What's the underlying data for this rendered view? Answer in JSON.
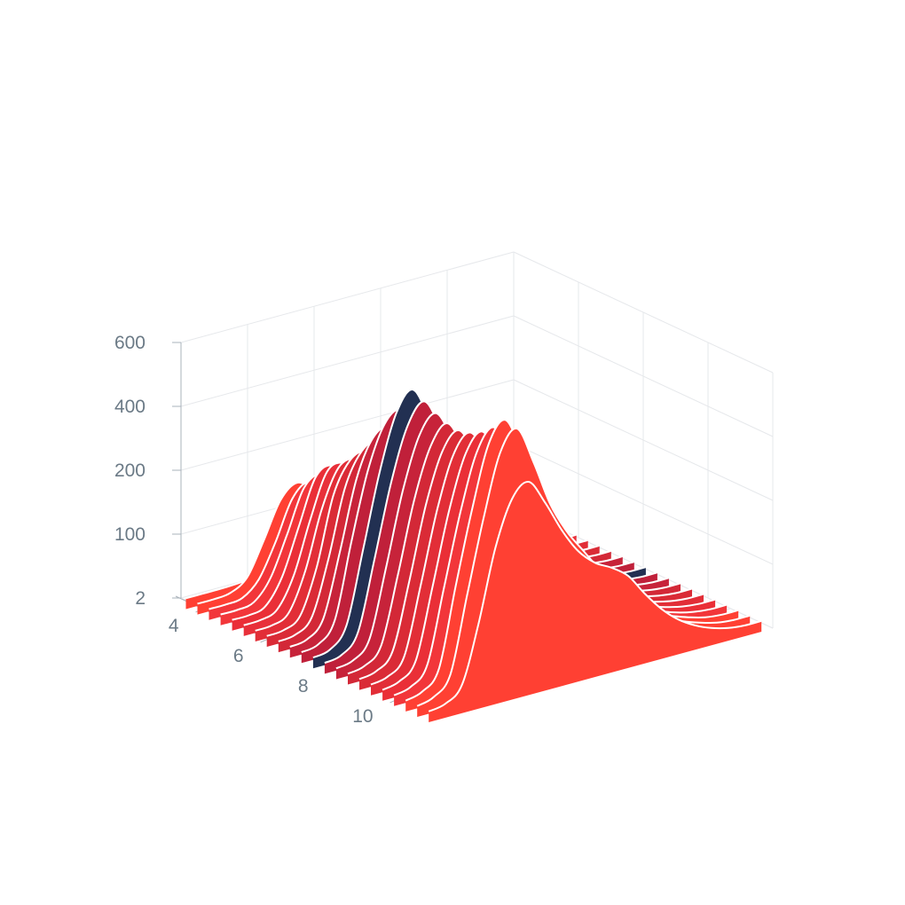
{
  "chart_data": {
    "type": "area",
    "subtype": "3d-ridgeline",
    "title": "",
    "xlabel": "",
    "ylabel": "",
    "zlabel": "",
    "y_axis": {
      "scale": "non-linear",
      "ticks": [
        2,
        100,
        200,
        400,
        600
      ],
      "tick_labels": [
        "2",
        "100",
        "200",
        "400",
        "600"
      ],
      "range": [
        2,
        600
      ]
    },
    "depth_axis": {
      "ticks": [
        4,
        6,
        8,
        10
      ],
      "tick_labels": [
        "4",
        "6",
        "8",
        "10"
      ],
      "range": [
        3.3,
        11.3
      ]
    },
    "x_range": [
      0,
      1
    ],
    "grid": true,
    "legend": "none",
    "highlight_series_index": 11,
    "highlight_color": "#223052",
    "series_colors": [
      "#ff4033",
      "#ff4033",
      "#f2363a",
      "#f2363a",
      "#ea2f37",
      "#e8303a",
      "#e22e37",
      "#da2b36",
      "#d32837",
      "#c7233a",
      "#c0203a",
      "#223052",
      "#c0203a",
      "#c7233a",
      "#d32837",
      "#da2b36",
      "#e22e37",
      "#ea2f37",
      "#f2363a",
      "#ff4033",
      "#ff4033",
      "#ff4033"
    ],
    "x": [
      0.0,
      0.05,
      0.1,
      0.15,
      0.2,
      0.25,
      0.3,
      0.35,
      0.4,
      0.45,
      0.5,
      0.55,
      0.6,
      0.65,
      0.7,
      0.75,
      0.8,
      0.85,
      0.9,
      0.95,
      1.0
    ],
    "series": [
      {
        "values": [
          5,
          5,
          5,
          6,
          8,
          10,
          12,
          13,
          13,
          13,
          13,
          12,
          10,
          8,
          7,
          6,
          5,
          5,
          5,
          5,
          5
        ]
      },
      {
        "values": [
          5,
          5,
          8,
          25,
          75,
          130,
          150,
          130,
          100,
          80,
          70,
          62,
          55,
          45,
          35,
          25,
          18,
          12,
          8,
          5,
          5
        ]
      },
      {
        "values": [
          5,
          5,
          8,
          30,
          80,
          140,
          160,
          135,
          105,
          85,
          75,
          65,
          55,
          45,
          35,
          25,
          18,
          12,
          8,
          5,
          5
        ]
      },
      {
        "values": [
          5,
          5,
          10,
          40,
          100,
          165,
          180,
          150,
          115,
          90,
          78,
          68,
          57,
          46,
          36,
          26,
          18,
          12,
          8,
          5,
          5
        ]
      },
      {
        "values": [
          5,
          5,
          12,
          50,
          120,
          190,
          205,
          170,
          130,
          100,
          85,
          72,
          60,
          48,
          37,
          27,
          19,
          12,
          8,
          5,
          5
        ]
      },
      {
        "values": [
          5,
          6,
          15,
          60,
          140,
          215,
          230,
          190,
          145,
          110,
          92,
          78,
          64,
          50,
          38,
          28,
          20,
          13,
          8,
          5,
          5
        ]
      },
      {
        "values": [
          5,
          6,
          18,
          75,
          165,
          245,
          260,
          215,
          160,
          120,
          100,
          84,
          68,
          53,
          40,
          29,
          20,
          13,
          8,
          5,
          5
        ]
      },
      {
        "values": [
          5,
          7,
          22,
          90,
          195,
          285,
          300,
          245,
          180,
          132,
          108,
          90,
          72,
          56,
          42,
          30,
          21,
          13,
          8,
          5,
          5
        ]
      },
      {
        "values": [
          5,
          8,
          28,
          110,
          230,
          330,
          350,
          285,
          205,
          148,
          118,
          96,
          76,
          58,
          43,
          31,
          21,
          13,
          8,
          5,
          5
        ]
      },
      {
        "values": [
          5,
          9,
          34,
          130,
          275,
          390,
          410,
          330,
          235,
          165,
          128,
          102,
          80,
          61,
          45,
          32,
          22,
          14,
          8,
          5,
          5
        ]
      },
      {
        "values": [
          5,
          10,
          40,
          155,
          320,
          450,
          480,
          380,
          265,
          182,
          140,
          110,
          85,
          64,
          47,
          33,
          22,
          14,
          8,
          5,
          5
        ]
      },
      {
        "values": [
          5,
          10,
          40,
          150,
          330,
          500,
          560,
          450,
          300,
          195,
          145,
          112,
          86,
          64,
          47,
          33,
          22,
          14,
          8,
          5,
          5
        ]
      },
      {
        "values": [
          5,
          10,
          38,
          145,
          315,
          480,
          540,
          435,
          290,
          190,
          142,
          110,
          85,
          63,
          46,
          32,
          22,
          14,
          8,
          5,
          5
        ]
      },
      {
        "values": [
          5,
          10,
          36,
          140,
          305,
          465,
          520,
          420,
          282,
          185,
          140,
          108,
          84,
          62,
          46,
          32,
          22,
          14,
          8,
          5,
          5
        ]
      },
      {
        "values": [
          5,
          10,
          34,
          135,
          295,
          450,
          505,
          405,
          275,
          182,
          138,
          106,
          82,
          61,
          45,
          32,
          22,
          14,
          8,
          5,
          5
        ]
      },
      {
        "values": [
          5,
          10,
          34,
          135,
          295,
          450,
          500,
          400,
          272,
          182,
          138,
          106,
          82,
          61,
          45,
          32,
          22,
          14,
          8,
          5,
          5
        ]
      },
      {
        "values": [
          5,
          10,
          34,
          138,
          300,
          460,
          510,
          410,
          280,
          186,
          140,
          108,
          84,
          62,
          46,
          32,
          22,
          14,
          8,
          5,
          5
        ]
      },
      {
        "values": [
          5,
          11,
          36,
          142,
          310,
          475,
          530,
          425,
          290,
          193,
          146,
          114,
          88,
          65,
          48,
          34,
          23,
          14,
          8,
          5,
          5
        ]
      },
      {
        "values": [
          5,
          11,
          38,
          150,
          325,
          500,
          560,
          450,
          310,
          210,
          160,
          125,
          95,
          70,
          50,
          35,
          23,
          14,
          8,
          5,
          5
        ]
      },
      {
        "values": [
          5,
          12,
          40,
          160,
          350,
          540,
          600,
          480,
          330,
          225,
          170,
          132,
          100,
          72,
          52,
          36,
          24,
          15,
          8,
          5,
          5
        ]
      },
      {
        "values": [
          5,
          12,
          40,
          155,
          340,
          530,
          590,
          470,
          325,
          225,
          175,
          138,
          105,
          76,
          54,
          37,
          24,
          15,
          8,
          5,
          5
        ]
      },
      {
        "values": [
          5,
          10,
          32,
          120,
          260,
          400,
          440,
          360,
          260,
          190,
          165,
          150,
          130,
          95,
          65,
          42,
          26,
          15,
          8,
          5,
          5
        ]
      }
    ]
  }
}
